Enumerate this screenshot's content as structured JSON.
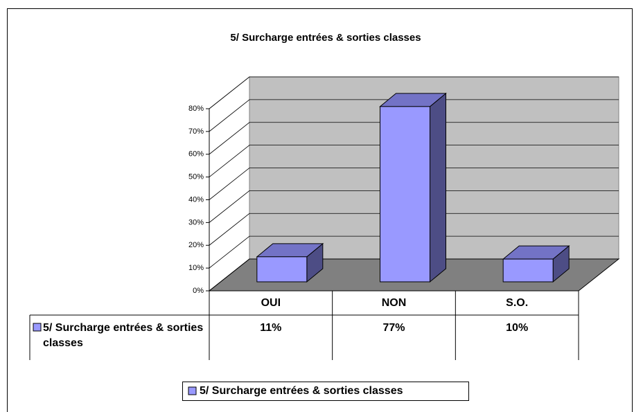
{
  "chart_data": {
    "type": "bar3d",
    "title": "5/ Surcharge entrées & sorties classes",
    "categories": [
      "OUI",
      "NON",
      "S.O."
    ],
    "series": [
      {
        "name": "5/ Surcharge entrées & sorties classes",
        "color": "#9999ff",
        "values": [
          11,
          77,
          10
        ],
        "value_labels": [
          "11%",
          "77%",
          "10%"
        ]
      }
    ],
    "ylim": [
      0,
      80
    ],
    "yticks": [
      {
        "value": 0,
        "label": "0%"
      },
      {
        "value": 10,
        "label": "10%"
      },
      {
        "value": 20,
        "label": "20%"
      },
      {
        "value": 30,
        "label": "30%"
      },
      {
        "value": 40,
        "label": "40%"
      },
      {
        "value": 50,
        "label": "50%"
      },
      {
        "value": 60,
        "label": "60%"
      },
      {
        "value": 70,
        "label": "70%"
      },
      {
        "value": 80,
        "label": "80%"
      }
    ],
    "grid": true,
    "legend": "bottom"
  }
}
